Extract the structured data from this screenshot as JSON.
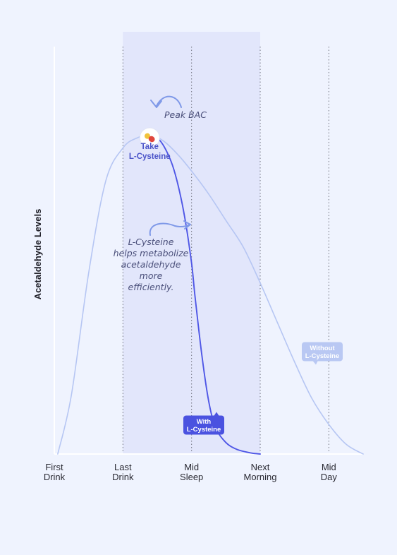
{
  "chart_data": {
    "type": "line",
    "ylabel": "Acetaldehyde Levels",
    "xlabel": "",
    "categories": [
      "First\nDrink",
      "Last\nDrink",
      "Mid\nSleep",
      "Next\nMorning",
      "Mid\nDay"
    ],
    "xlim": [
      0,
      4.5
    ],
    "ylim": [
      0,
      100
    ],
    "shaded_region": [
      1,
      3
    ],
    "grid": "vertical dotted lines at Last Drink, Mid Sleep, Next Morning, Mid Day",
    "series": [
      {
        "name": "Without L-Cysteine",
        "color": "#b6c6f3",
        "x": [
          0.05,
          0.25,
          0.5,
          0.75,
          1.0,
          1.2,
          1.4,
          1.6,
          1.8,
          2.0,
          2.25,
          2.5,
          2.75,
          3.0,
          3.25,
          3.5,
          3.75,
          4.0,
          4.25,
          4.5
        ],
        "y": [
          0,
          18,
          55,
          83,
          93,
          96,
          97,
          95,
          91,
          86,
          79,
          71,
          63,
          52,
          40,
          28,
          17,
          9,
          3,
          0
        ]
      },
      {
        "name": "With L-Cysteine",
        "color": "#4f57e6",
        "x": [
          1.4,
          1.55,
          1.7,
          1.8,
          1.9,
          2.0,
          2.05,
          2.15,
          2.25,
          2.35,
          2.5,
          2.65,
          2.8,
          2.9,
          3.0
        ],
        "y": [
          97,
          95,
          89,
          82,
          72,
          58,
          48,
          30,
          16,
          8,
          3.5,
          1.5,
          0.6,
          0.2,
          0
        ]
      }
    ],
    "annotations": {
      "peak": "Peak BAC",
      "take": [
        "Take",
        "L-Cysteine"
      ],
      "note": [
        "L-Cysteine",
        "helps metabolize",
        "acetaldehyde",
        "more",
        "efficiently."
      ],
      "without_label": [
        "Without",
        "L-Cysteine"
      ],
      "with_label": [
        "With",
        "L-Cysteine"
      ]
    }
  },
  "colors": {
    "background": "#eff3fe",
    "shade": "#e2e6fb",
    "grid": "#6f717d",
    "axis": "#ffffff",
    "without": "#b6c6f3",
    "with": "#4f57e6",
    "without_pill": "#b9c8f3",
    "with_pill": "#4a52e0"
  },
  "icons": {
    "pill": "pill-capsule-icon"
  }
}
